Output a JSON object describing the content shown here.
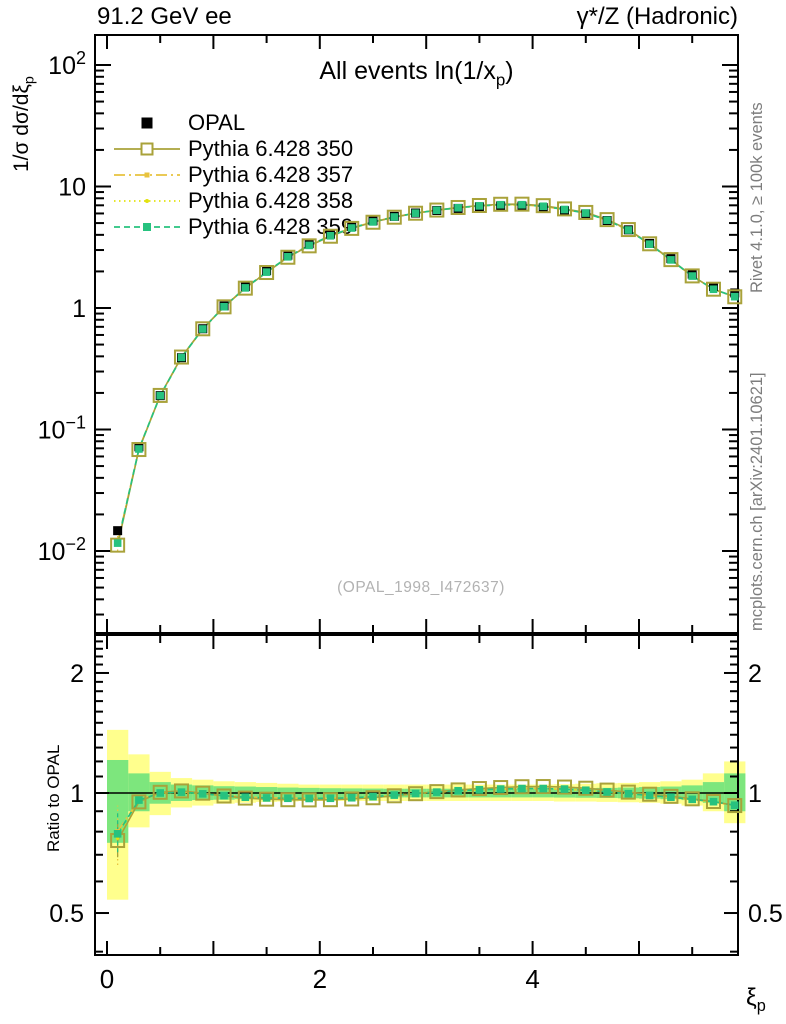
{
  "header": {
    "left": "91.2 GeV ee",
    "right": "γ*/Z (Hadronic)"
  },
  "plot_title": {
    "pre": "All events ln(1/x",
    "sub": "p",
    "post": ")"
  },
  "y_axis_label": {
    "pre": "1/σ  dσ/dξ",
    "sub": "p"
  },
  "ratio_axis_label": "Ratio to OPAL",
  "x_axis_label": {
    "pre": "ξ",
    "sub": "p"
  },
  "watermark": "(OPAL_1998_I472637)",
  "side_notes": {
    "top": "Rivet 4.1.0, ≥ 100k events",
    "bottom": "mcplots.cern.ch [arXiv:2401.10621]"
  },
  "legend": {
    "items": [
      {
        "id": "opal",
        "label": "OPAL",
        "marker": "filled-square",
        "line": "none"
      },
      {
        "id": "pythia-350",
        "label": "Pythia 6.428 350",
        "marker": "open-square",
        "line": "solid"
      },
      {
        "id": "pythia-357",
        "label": "Pythia 6.428 357",
        "marker": "small-square",
        "line": "dash-dot"
      },
      {
        "id": "pythia-358",
        "label": "Pythia 6.428 358",
        "marker": "dot",
        "line": "dotted"
      },
      {
        "id": "pythia-359",
        "label": "Pythia 6.428 359",
        "marker": "filled-square-small",
        "line": "dashed"
      }
    ]
  },
  "colors": {
    "opal": "#000000",
    "pythia_350": "#a9a23a",
    "pythia_357": "#e8c33e",
    "pythia_358": "#e2e20f",
    "pythia_359": "#27c27f",
    "band_yellow": "#ffff8d",
    "band_green": "#7de67d",
    "note_gray": "#7d7d7d",
    "watermark_gray": "#b2b2b2"
  },
  "axes": {
    "main_y_ticks": [
      {
        "v": 0.01,
        "base": "10",
        "exp": "−2"
      },
      {
        "v": 0.1,
        "base": "10",
        "exp": "−1"
      },
      {
        "v": 1,
        "base": "1",
        "exp": ""
      },
      {
        "v": 10,
        "base": "10",
        "exp": ""
      },
      {
        "v": 100,
        "base": "10",
        "exp": "2"
      }
    ],
    "ratio_y_ticks": [
      {
        "v": 2,
        "label": "2"
      },
      {
        "v": 1,
        "label": "1"
      },
      {
        "v": 0.5,
        "label": "0.5"
      }
    ],
    "x_ticks": [
      {
        "v": 0,
        "label": "0"
      },
      {
        "v": 2,
        "label": "2"
      },
      {
        "v": 4,
        "label": "4"
      }
    ]
  },
  "chart_data": {
    "type": "line",
    "title": "All events ln(1/x_p)",
    "xlabel": "ξ_p",
    "ylabel": "1/σ dσ/dξ_p",
    "bins_x": [
      0.1,
      0.3,
      0.5,
      0.7,
      0.9,
      1.1,
      1.3,
      1.5,
      1.7,
      1.9,
      2.1,
      2.3,
      2.5,
      2.7,
      2.9,
      3.1,
      3.3,
      3.5,
      3.7,
      3.9,
      4.1,
      4.3,
      4.5,
      4.7,
      4.9,
      5.1,
      5.3,
      5.5,
      5.7,
      5.9
    ],
    "main_panel": {
      "yscale": "log",
      "ylim": [
        0.0021,
        176
      ],
      "xlim": [
        -0.11,
        5.93
      ],
      "opal_values": [
        0.0147,
        0.072,
        0.19,
        0.39,
        0.675,
        1.04,
        1.5,
        2.03,
        2.72,
        3.38,
        4.05,
        4.68,
        5.22,
        5.68,
        6.05,
        6.35,
        6.6,
        6.8,
        6.92,
        6.9,
        6.7,
        6.32,
        5.95,
        5.25,
        4.4,
        3.4,
        2.55,
        1.9,
        1.5,
        1.33
      ],
      "mc_note": "MC curve values = opal_values × ratio_to_opal per series",
      "mc_series": [
        {
          "name": "Pythia 6.428 350",
          "ratio_to_opal": [
            0.76,
            0.95,
            1.004,
            1.012,
            0.999,
            0.983,
            0.971,
            0.965,
            0.962,
            0.961,
            0.962,
            0.966,
            0.973,
            0.984,
            0.996,
            1.008,
            1.018,
            1.026,
            1.032,
            1.037,
            1.038,
            1.035,
            1.028,
            1.017,
            1.005,
            0.993,
            0.981,
            0.967,
            0.952,
            0.93
          ]
        },
        {
          "name": "Pythia 6.428 357",
          "ratio_to_opal": [
            0.8,
            0.962,
            1.001,
            1.006,
            0.996,
            0.986,
            0.977,
            0.973,
            0.971,
            0.97,
            0.971,
            0.974,
            0.98,
            0.989,
            0.998,
            1.006,
            1.013,
            1.019,
            1.023,
            1.025,
            1.025,
            1.022,
            1.015,
            1.005,
            0.995,
            0.985,
            0.975,
            0.963,
            0.95,
            0.931
          ]
        },
        {
          "name": "Pythia 6.428 358",
          "ratio_to_opal": [
            0.77,
            0.955,
            0.999,
            1.004,
            0.994,
            0.984,
            0.975,
            0.971,
            0.969,
            0.968,
            0.969,
            0.972,
            0.978,
            0.987,
            0.996,
            1.004,
            1.012,
            1.018,
            1.022,
            1.025,
            1.025,
            1.022,
            1.015,
            1.005,
            0.995,
            0.985,
            0.975,
            0.962,
            0.949,
            0.93
          ]
        },
        {
          "name": "Pythia 6.428 359",
          "ratio_to_opal": [
            0.79,
            0.96,
            1.0,
            1.005,
            0.995,
            0.985,
            0.976,
            0.972,
            0.97,
            0.969,
            0.97,
            0.973,
            0.979,
            0.988,
            0.997,
            1.005,
            1.013,
            1.019,
            1.023,
            1.026,
            1.026,
            1.023,
            1.016,
            1.006,
            0.996,
            0.986,
            0.976,
            0.964,
            0.951,
            0.932
          ]
        }
      ]
    },
    "ratio_panel": {
      "yscale": "log",
      "ylim": [
        0.39,
        2.49
      ],
      "ylabel": "Ratio to OPAL",
      "unity_line": 1,
      "band_yellow": [
        [
          0.54,
          1.44
        ],
        [
          0.82,
          1.25
        ],
        [
          0.88,
          1.13
        ],
        [
          0.92,
          1.09
        ],
        [
          0.93,
          1.08
        ],
        [
          0.94,
          1.07
        ],
        [
          0.945,
          1.065
        ],
        [
          0.95,
          1.06
        ],
        [
          0.952,
          1.055
        ],
        [
          0.955,
          1.05
        ],
        [
          0.955,
          1.05
        ],
        [
          0.955,
          1.05
        ],
        [
          0.955,
          1.05
        ],
        [
          0.955,
          1.05
        ],
        [
          0.955,
          1.05
        ],
        [
          0.955,
          1.05
        ],
        [
          0.955,
          1.05
        ],
        [
          0.955,
          1.05
        ],
        [
          0.955,
          1.05
        ],
        [
          0.955,
          1.05
        ],
        [
          0.955,
          1.05
        ],
        [
          0.952,
          1.052
        ],
        [
          0.952,
          1.055
        ],
        [
          0.95,
          1.058
        ],
        [
          0.948,
          1.06
        ],
        [
          0.945,
          1.065
        ],
        [
          0.94,
          1.07
        ],
        [
          0.93,
          1.08
        ],
        [
          0.9,
          1.12
        ],
        [
          0.84,
          1.2
        ]
      ],
      "band_green": [
        [
          0.75,
          1.21
        ],
        [
          0.9,
          1.12
        ],
        [
          0.94,
          1.065
        ],
        [
          0.955,
          1.05
        ],
        [
          0.96,
          1.045
        ],
        [
          0.962,
          1.04
        ],
        [
          0.965,
          1.038
        ],
        [
          0.968,
          1.035
        ],
        [
          0.97,
          1.032
        ],
        [
          0.972,
          1.03
        ],
        [
          0.973,
          1.028
        ],
        [
          0.974,
          1.027
        ],
        [
          0.975,
          1.026
        ],
        [
          0.975,
          1.025
        ],
        [
          0.975,
          1.025
        ],
        [
          0.975,
          1.025
        ],
        [
          0.975,
          1.025
        ],
        [
          0.975,
          1.025
        ],
        [
          0.975,
          1.025
        ],
        [
          0.975,
          1.025
        ],
        [
          0.975,
          1.026
        ],
        [
          0.974,
          1.027
        ],
        [
          0.973,
          1.028
        ],
        [
          0.972,
          1.03
        ],
        [
          0.97,
          1.032
        ],
        [
          0.968,
          1.035
        ],
        [
          0.965,
          1.038
        ],
        [
          0.96,
          1.045
        ],
        [
          0.945,
          1.065
        ],
        [
          0.9,
          1.12
        ]
      ]
    }
  }
}
